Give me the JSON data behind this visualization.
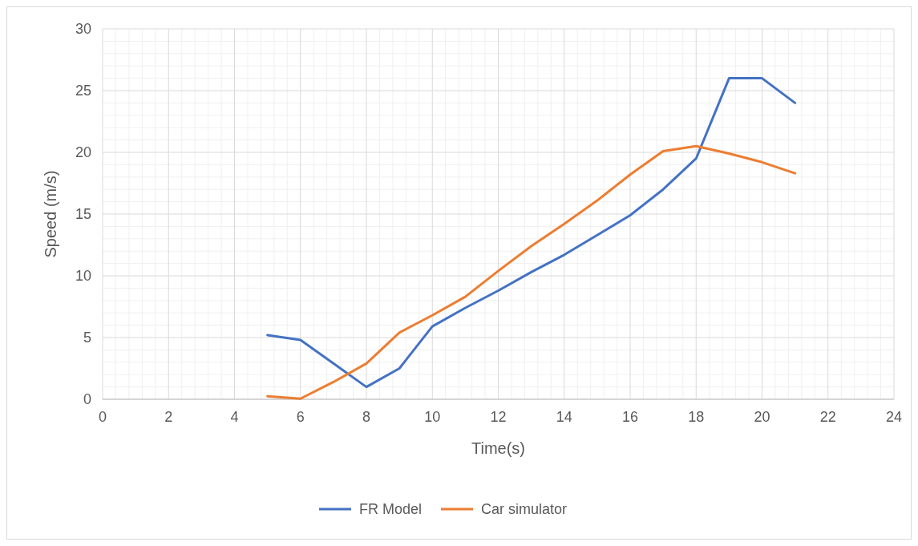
{
  "chart_data": {
    "type": "line",
    "xlabel": "Time(s)",
    "ylabel": "Speed (m/s)",
    "x": [
      5,
      6,
      7,
      8,
      9,
      10,
      11,
      12,
      13,
      14,
      15,
      16,
      17,
      18,
      19,
      20,
      21
    ],
    "series": [
      {
        "name": "FR Model",
        "color": "#4472c4",
        "values": [
          5.2,
          4.8,
          2.9,
          1.0,
          2.5,
          5.9,
          7.4,
          8.8,
          10.3,
          11.7,
          13.3,
          14.9,
          17.0,
          19.5,
          26.0,
          26.0,
          24.0
        ]
      },
      {
        "name": "Car simulator",
        "color": "#ed7d31",
        "values": [
          0.25,
          0.05,
          1.4,
          2.9,
          5.4,
          6.8,
          8.3,
          10.4,
          12.4,
          14.2,
          16.1,
          18.2,
          20.1,
          20.5,
          19.9,
          19.2,
          18.3
        ]
      }
    ],
    "xlim": [
      0,
      24
    ],
    "xticks": [
      0,
      2,
      4,
      6,
      8,
      10,
      12,
      14,
      16,
      18,
      20,
      22,
      24
    ],
    "ylim": [
      0,
      30
    ],
    "yticks": [
      0,
      5,
      10,
      15,
      20,
      25,
      30
    ],
    "grid": true,
    "legend": "bottom",
    "marker": "none",
    "line_style": "solid"
  }
}
